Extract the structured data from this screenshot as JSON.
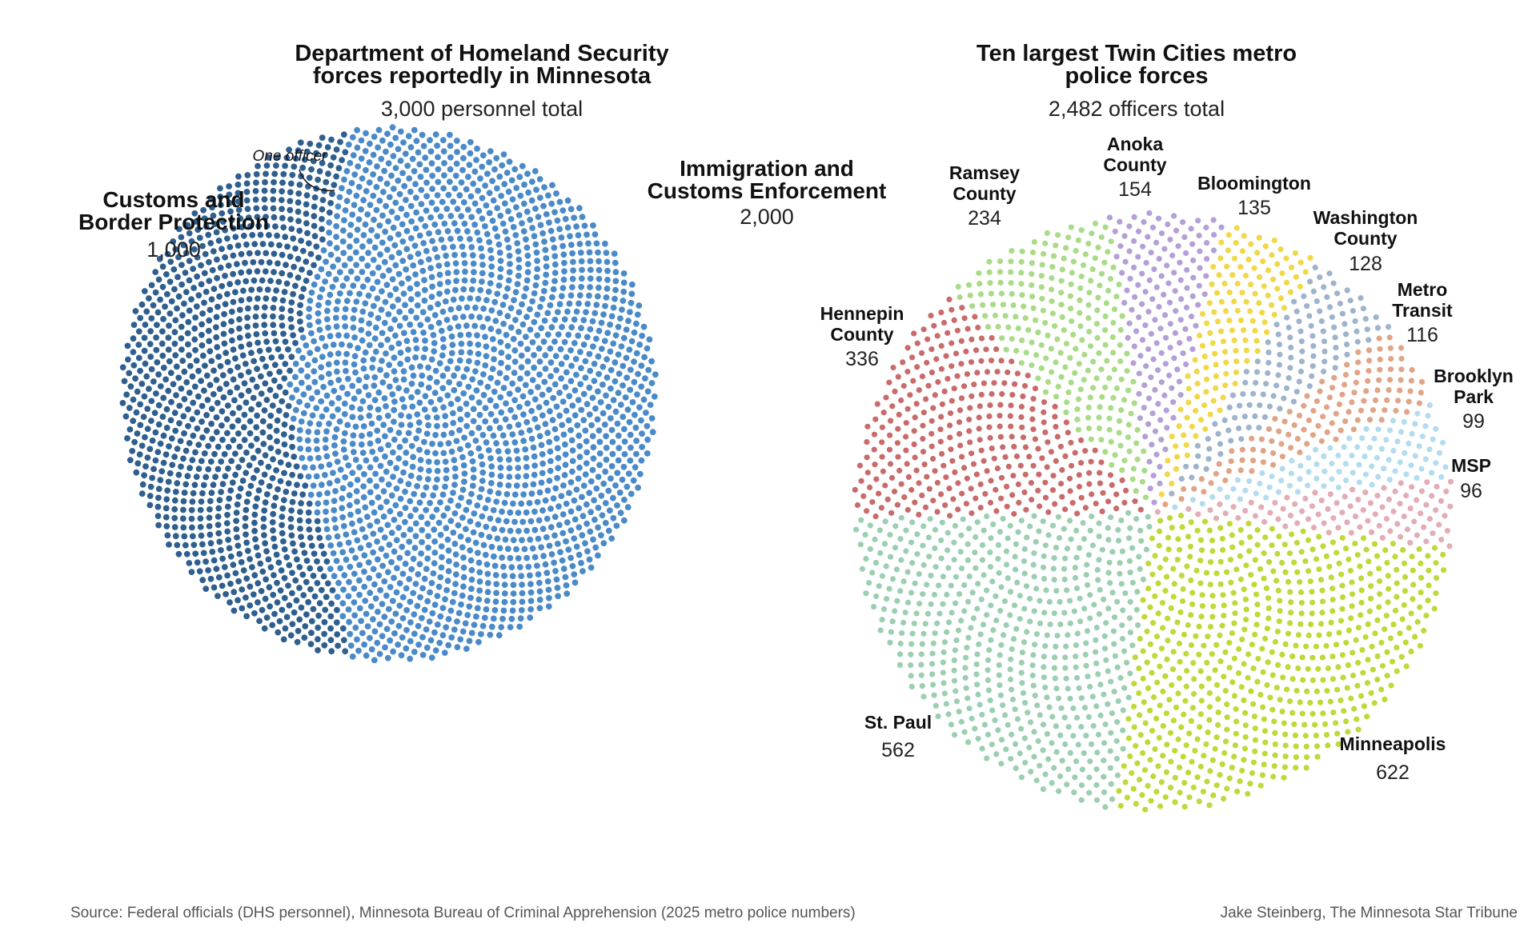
{
  "chart_data": [
    {
      "type": "dot-pie",
      "title_lines": [
        "Department of Homeland Security",
        "forces reportedly in Minnesota"
      ],
      "subtitle": "3,000 personnel total",
      "unit": "One officer",
      "series": [
        {
          "name_lines": [
            "Customs and",
            "Border Protection"
          ],
          "value": 1000,
          "value_label": "1,000",
          "color": "#2f5f8f"
        },
        {
          "name_lines": [
            "Immigration and",
            "Customs Enforcement"
          ],
          "value": 2000,
          "value_label": "2,000",
          "color": "#4a8ac8"
        }
      ]
    },
    {
      "type": "dot-pie",
      "title_lines": [
        "Ten largest Twin Cities metro",
        "police forces"
      ],
      "subtitle": "2,482 officers total",
      "series": [
        {
          "name_lines": [
            "Minneapolis"
          ],
          "value": 622,
          "value_label": "622",
          "color": "#bfd93a"
        },
        {
          "name_lines": [
            "MSP"
          ],
          "value": 96,
          "value_label": "96",
          "color": "#e2aeb6"
        },
        {
          "name_lines": [
            "Brooklyn",
            "Park"
          ],
          "value": 99,
          "value_label": "99",
          "color": "#b4dcef"
        },
        {
          "name_lines": [
            "Metro",
            "Transit"
          ],
          "value": 116,
          "value_label": "116",
          "color": "#e0a588"
        },
        {
          "name_lines": [
            "Washington",
            "County"
          ],
          "value": 128,
          "value_label": "128",
          "color": "#9fb3cd"
        },
        {
          "name_lines": [
            "Bloomington"
          ],
          "value": 135,
          "value_label": "135",
          "color": "#f1d84a"
        },
        {
          "name_lines": [
            "Anoka",
            "County"
          ],
          "value": 154,
          "value_label": "154",
          "color": "#b49fd6"
        },
        {
          "name_lines": [
            "Ramsey",
            "County"
          ],
          "value": 234,
          "value_label": "234",
          "color": "#aadb89"
        },
        {
          "name_lines": [
            "Hennepin",
            "County"
          ],
          "value": 336,
          "value_label": "336",
          "color": "#c96b6b"
        },
        {
          "name_lines": [
            "St. Paul"
          ],
          "value": 562,
          "value_label": "562",
          "color": "#9ccfb1"
        }
      ]
    }
  ],
  "footer": {
    "source": "Source: Federal officials (DHS personnel), Minnesota Bureau of Criminal Apprehension (2025 metro police numbers)",
    "credit": "Jake Steinberg, The Minnesota Star Tribune"
  }
}
